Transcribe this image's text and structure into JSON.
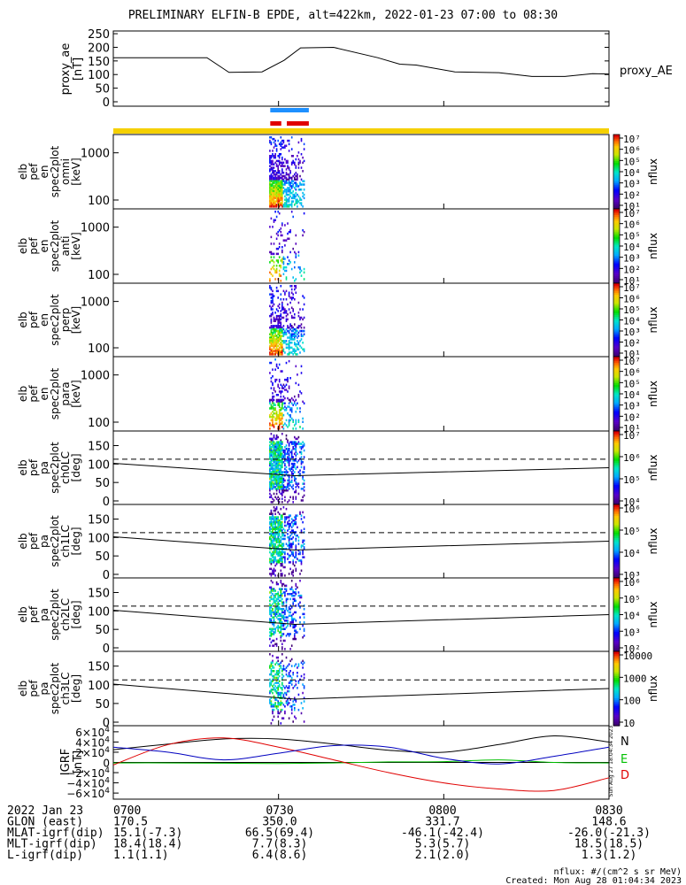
{
  "title": "PRELIMINARY ELFIN-B EPDE, alt=422km, 2022-01-23 07:00 to 08:30",
  "chart_data": [
    {
      "type": "line",
      "name": "proxy_ae",
      "ylabel_lines": [
        "proxy_ae",
        "[nT]"
      ],
      "legend": "proxy_AE",
      "ylim": [
        0,
        260
      ],
      "yticks": [
        "0",
        "50",
        "100",
        "150",
        "200",
        "250"
      ],
      "x_minutes": [
        0,
        11,
        17,
        21,
        27,
        31,
        34,
        40,
        48,
        52,
        55,
        62,
        70,
        76,
        82,
        87,
        90
      ],
      "values": [
        162,
        162,
        162,
        108,
        110,
        152,
        198,
        200,
        162,
        138,
        135,
        110,
        107,
        93,
        93,
        103,
        102
      ]
    },
    {
      "type": "heatmap",
      "name": "elb_pef_en_spec2plot_omni",
      "ylabel_lines": [
        "elb",
        "pef",
        "en",
        "spec2plot",
        "omni",
        "[keV]"
      ],
      "scale": "log",
      "yticks": [
        "100",
        "1000"
      ],
      "colorbar_ticks": [
        "10¹",
        "10²",
        "10³",
        "10⁴",
        "10⁵",
        "10⁶",
        "10⁷"
      ],
      "colorbar_label": "nflux"
    },
    {
      "type": "heatmap",
      "name": "elb_pef_en_spec2plot_anti",
      "ylabel_lines": [
        "elb",
        "pef",
        "en",
        "spec2plot",
        "anti",
        "[keV]"
      ],
      "scale": "log",
      "yticks": [
        "100",
        "1000"
      ],
      "colorbar_ticks": [
        "10¹",
        "10²",
        "10³",
        "10⁴",
        "10⁵",
        "10⁶",
        "10⁷"
      ],
      "colorbar_label": "nflux"
    },
    {
      "type": "heatmap",
      "name": "elb_pef_en_spec2plot_perp",
      "ylabel_lines": [
        "elb",
        "pef",
        "en",
        "spec2plot",
        "perp",
        "[keV]"
      ],
      "scale": "log",
      "yticks": [
        "100",
        "1000"
      ],
      "colorbar_ticks": [
        "10¹",
        "10²",
        "10³",
        "10⁴",
        "10⁵",
        "10⁶",
        "10⁷"
      ],
      "colorbar_label": "nflux"
    },
    {
      "type": "heatmap",
      "name": "elb_pef_en_spec2plot_para",
      "ylabel_lines": [
        "elb",
        "pef",
        "en",
        "spec2plot",
        "para",
        "[keV]"
      ],
      "scale": "log",
      "yticks": [
        "100",
        "1000"
      ],
      "colorbar_ticks": [
        "10¹",
        "10²",
        "10³",
        "10⁴",
        "10⁵",
        "10⁶",
        "10⁷"
      ],
      "colorbar_label": "nflux"
    },
    {
      "type": "heatmap",
      "name": "elb_pef_pa_spec2plot_ch0LC",
      "ylabel_lines": [
        "elb",
        "pef",
        "pa",
        "spec2plot",
        "ch0LC",
        "[deg]"
      ],
      "ylim": [
        0,
        180
      ],
      "yticks": [
        "0",
        "50",
        "100",
        "150"
      ],
      "colorbar_ticks": [
        "10⁴",
        "10⁵",
        "10⁶",
        "10⁷"
      ],
      "colorbar_label": "nflux"
    },
    {
      "type": "heatmap",
      "name": "elb_pef_pa_spec2plot_ch1LC",
      "ylabel_lines": [
        "elb",
        "pef",
        "pa",
        "spec2plot",
        "ch1LC",
        "[deg]"
      ],
      "ylim": [
        0,
        180
      ],
      "yticks": [
        "0",
        "50",
        "100",
        "150"
      ],
      "colorbar_ticks": [
        "10³",
        "10⁴",
        "10⁵",
        "10⁶"
      ],
      "colorbar_label": "nflux"
    },
    {
      "type": "heatmap",
      "name": "elb_pef_pa_spec2plot_ch2LC",
      "ylabel_lines": [
        "elb",
        "pef",
        "pa",
        "spec2plot",
        "ch2LC",
        "[deg]"
      ],
      "ylim": [
        0,
        180
      ],
      "yticks": [
        "0",
        "50",
        "100",
        "150"
      ],
      "colorbar_ticks": [
        "10²",
        "10³",
        "10⁴",
        "10⁵",
        "10⁶"
      ],
      "colorbar_label": "nflux"
    },
    {
      "type": "heatmap",
      "name": "elb_pef_pa_spec2plot_ch3LC",
      "ylabel_lines": [
        "elb",
        "pef",
        "pa",
        "spec2plot",
        "ch3LC",
        "[deg]"
      ],
      "ylim": [
        0,
        180
      ],
      "yticks": [
        "0",
        "50",
        "100",
        "150"
      ],
      "colorbar_ticks": [
        "10",
        "100",
        "1000",
        "10000"
      ],
      "colorbar_label": "nflux"
    },
    {
      "type": "line",
      "name": "IGRF",
      "ylabel_lines": [
        "IGRF",
        "[nT]"
      ],
      "ylim": [
        -65000,
        65000
      ],
      "ytick_values": [
        60000,
        40000,
        20000,
        0,
        -20000,
        -40000,
        -60000
      ],
      "ytick_mantissa": [
        "6",
        "4",
        "2",
        "0",
        "−2",
        "−4",
        "−6"
      ],
      "ytick_base": "×10",
      "ytick_exp": "4",
      "x_minutes": [
        0,
        10,
        20,
        30,
        40,
        50,
        60,
        70,
        80,
        90
      ],
      "series": [
        {
          "name": "N",
          "color": "#000000",
          "values": [
            25000,
            36000,
            46000,
            46000,
            36000,
            24000,
            20000,
            35000,
            52000,
            40000
          ]
        },
        {
          "name": "E",
          "color": "#00c000",
          "values": [
            -1000,
            -1000,
            -1500,
            -2000,
            -1000,
            1000,
            1500,
            5000,
            0,
            -1000
          ]
        },
        {
          "name": "D",
          "color": "#e00000",
          "values": [
            -5000,
            35000,
            48000,
            30000,
            5000,
            -20000,
            -40000,
            -52000,
            -55000,
            -30000
          ]
        },
        {
          "name": "",
          "color": "#0000c0",
          "values": [
            30000,
            20000,
            5000,
            18000,
            33000,
            30000,
            8000,
            -3000,
            12000,
            30000
          ]
        }
      ],
      "side_note": "Sun Aug 27 18:04:34 2023"
    }
  ],
  "time_axis": {
    "ticks": [
      "0700",
      "0730",
      "0800",
      "0830"
    ],
    "tick_minutes": [
      0,
      30,
      60,
      90
    ],
    "range_minutes": [
      0,
      90
    ]
  },
  "footer": {
    "rows": [
      {
        "label": "2022 Jan 23",
        "values": [
          "0700",
          "0730",
          "0800",
          "0830"
        ]
      },
      {
        "label": "GLON (east)",
        "values": [
          "170.5",
          "350.0",
          "331.7",
          "148.6"
        ]
      },
      {
        "label": "MLAT-igrf(dip)",
        "values": [
          "15.1(-7.3)",
          "66.5(69.4)",
          "-46.1(-42.4)",
          "-26.0(-21.3)"
        ]
      },
      {
        "label": "MLT-igrf(dip)",
        "values": [
          "18.4(18.4)",
          "7.7(8.3)",
          "5.3(5.7)",
          "18.5(18.5)"
        ]
      },
      {
        "label": "L-igrf(dip)",
        "values": [
          "1.1(1.1)",
          "6.4(8.6)",
          "2.1(2.0)",
          "1.3(1.2)"
        ]
      }
    ],
    "units_note": "nflux: #/(cm^2 s sr MeV)",
    "created_note": "Created: Mon Aug 28 01:04:34 2023"
  },
  "state_bars": {
    "blue_minutes": [
      28.5,
      35.5
    ],
    "red_minutes": [
      [
        28.5,
        30.5
      ],
      [
        31.5,
        35.5
      ]
    ],
    "yellow_minutes": [
      0,
      90
    ]
  },
  "colors": {
    "line": "#000000",
    "bar_blue": "#1e90ff",
    "bar_red": "#e00000",
    "bar_yellow": "#f5d000"
  }
}
